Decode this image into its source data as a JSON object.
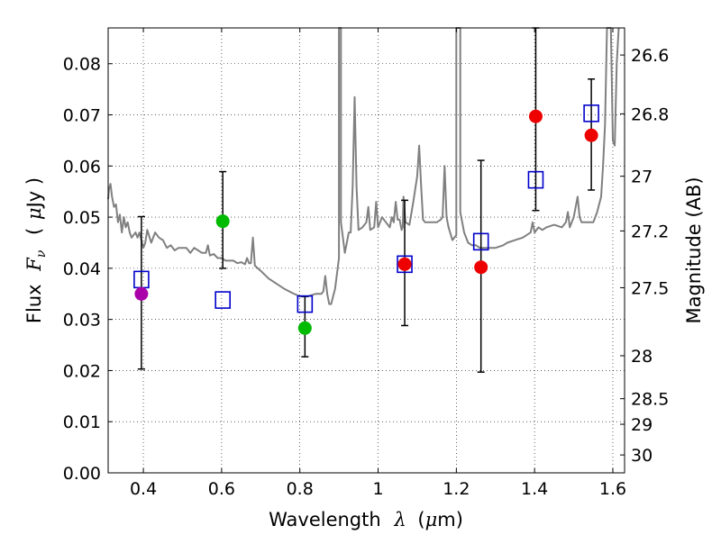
{
  "chart_data": {
    "type": "scatter",
    "title": "",
    "xlabel_prefix": "Wavelength",
    "xlabel_symbol": "λ",
    "xlabel_unit_open": "(",
    "xlabel_unit_mu": "μ",
    "xlabel_unit_rest": "m)",
    "ylabel_prefix": "Flux",
    "ylabel_symbol": "F",
    "ylabel_sub": "ν",
    "ylabel_unit_open": "(",
    "ylabel_unit_mu": "μ",
    "ylabel_unit_rest": "Jy )",
    "y2label": "Magnitude (AB)",
    "xlim": [
      0.31,
      1.63
    ],
    "ylim": [
      0.0,
      0.087
    ],
    "grid": true,
    "x_ticks": [
      0.4,
      0.6,
      0.8,
      1.0,
      1.2,
      1.4,
      1.6
    ],
    "x_tick_labels": [
      "0.4",
      "0.6",
      "0.8",
      "1",
      "1.2",
      "1.4",
      "1.6"
    ],
    "y_ticks": [
      0.0,
      0.01,
      0.02,
      0.03,
      0.04,
      0.05,
      0.06,
      0.07,
      0.08
    ],
    "y_tick_labels": [
      "0.00",
      "0.01",
      "0.02",
      "0.03",
      "0.04",
      "0.05",
      "0.06",
      "0.07",
      "0.08"
    ],
    "magnitude_ticks": [
      {
        "label": "26.6",
        "flux": 0.0817
      },
      {
        "label": "26.8",
        "flux": 0.0702
      },
      {
        "label": "27",
        "flux": 0.058
      },
      {
        "label": "27.2",
        "flux": 0.0473
      },
      {
        "label": "27.5",
        "flux": 0.0362
      },
      {
        "label": "28",
        "flux": 0.0229
      },
      {
        "label": "28.5",
        "flux": 0.0145
      },
      {
        "label": "29",
        "flux": 0.0095
      },
      {
        "label": "30",
        "flux": 0.0035
      }
    ],
    "series": [
      {
        "name": "model spectrum",
        "kind": "line",
        "color": "#808080",
        "points": [
          [
            0.31,
            0.0535
          ],
          [
            0.312,
            0.0555
          ],
          [
            0.316,
            0.0565
          ],
          [
            0.32,
            0.054
          ],
          [
            0.325,
            0.052
          ],
          [
            0.33,
            0.0525
          ],
          [
            0.335,
            0.049
          ],
          [
            0.34,
            0.0505
          ],
          [
            0.345,
            0.047
          ],
          [
            0.35,
            0.05
          ],
          [
            0.355,
            0.048
          ],
          [
            0.36,
            0.049
          ],
          [
            0.365,
            0.047
          ],
          [
            0.37,
            0.046
          ],
          [
            0.38,
            0.047
          ],
          [
            0.385,
            0.046
          ],
          [
            0.39,
            0.047
          ],
          [
            0.4,
            0.044
          ],
          [
            0.405,
            0.045
          ],
          [
            0.41,
            0.0475
          ],
          [
            0.42,
            0.045
          ],
          [
            0.43,
            0.047
          ],
          [
            0.44,
            0.046
          ],
          [
            0.45,
            0.0455
          ],
          [
            0.46,
            0.044
          ],
          [
            0.47,
            0.0445
          ],
          [
            0.48,
            0.0435
          ],
          [
            0.49,
            0.044
          ],
          [
            0.5,
            0.044
          ],
          [
            0.51,
            0.044
          ],
          [
            0.52,
            0.043
          ],
          [
            0.53,
            0.044
          ],
          [
            0.54,
            0.0435
          ],
          [
            0.55,
            0.043
          ],
          [
            0.56,
            0.043
          ],
          [
            0.565,
            0.0445
          ],
          [
            0.57,
            0.0425
          ],
          [
            0.58,
            0.0428
          ],
          [
            0.59,
            0.042
          ],
          [
            0.6,
            0.042
          ],
          [
            0.61,
            0.0415
          ],
          [
            0.62,
            0.0415
          ],
          [
            0.63,
            0.0415
          ],
          [
            0.64,
            0.041
          ],
          [
            0.65,
            0.0412
          ],
          [
            0.66,
            0.0408
          ],
          [
            0.665,
            0.042
          ],
          [
            0.67,
            0.041
          ],
          [
            0.675,
            0.041
          ],
          [
            0.68,
            0.046
          ],
          [
            0.685,
            0.0405
          ],
          [
            0.7,
            0.0395
          ],
          [
            0.72,
            0.038
          ],
          [
            0.74,
            0.037
          ],
          [
            0.76,
            0.036
          ],
          [
            0.78,
            0.0352
          ],
          [
            0.8,
            0.0345
          ],
          [
            0.82,
            0.0345
          ],
          [
            0.84,
            0.035
          ],
          [
            0.855,
            0.035
          ],
          [
            0.86,
            0.0355
          ],
          [
            0.865,
            0.0385
          ],
          [
            0.87,
            0.035
          ],
          [
            0.875,
            0.033
          ],
          [
            0.88,
            0.033
          ],
          [
            0.885,
            0.0345
          ],
          [
            0.89,
            0.036
          ],
          [
            0.9,
            0.042
          ],
          [
            0.9,
            0.087
          ],
          [
            0.905,
            0.087
          ],
          [
            0.905,
            0.049
          ],
          [
            0.91,
            0.046
          ],
          [
            0.915,
            0.043
          ],
          [
            0.92,
            0.045
          ],
          [
            0.925,
            0.047
          ],
          [
            0.93,
            0.047
          ],
          [
            0.935,
            0.056
          ],
          [
            0.94,
            0.0735
          ],
          [
            0.945,
            0.056
          ],
          [
            0.95,
            0.0475
          ],
          [
            0.96,
            0.048
          ],
          [
            0.97,
            0.049
          ],
          [
            0.975,
            0.052
          ],
          [
            0.98,
            0.0475
          ],
          [
            0.99,
            0.048
          ],
          [
            0.995,
            0.053
          ],
          [
            1.0,
            0.048
          ],
          [
            1.01,
            0.05
          ],
          [
            1.02,
            0.049
          ],
          [
            1.03,
            0.048
          ],
          [
            1.035,
            0.05
          ],
          [
            1.04,
            0.049
          ],
          [
            1.045,
            0.053
          ],
          [
            1.05,
            0.0495
          ],
          [
            1.055,
            0.0495
          ],
          [
            1.06,
            0.0475
          ],
          [
            1.063,
            0.048
          ],
          [
            1.065,
            0.054
          ],
          [
            1.07,
            0.049
          ],
          [
            1.08,
            0.0485
          ],
          [
            1.09,
            0.053
          ],
          [
            1.1,
            0.058
          ],
          [
            1.105,
            0.064
          ],
          [
            1.11,
            0.056
          ],
          [
            1.115,
            0.0495
          ],
          [
            1.12,
            0.049
          ],
          [
            1.13,
            0.049
          ],
          [
            1.14,
            0.049
          ],
          [
            1.15,
            0.049
          ],
          [
            1.16,
            0.0495
          ],
          [
            1.165,
            0.05
          ],
          [
            1.17,
            0.06
          ],
          [
            1.175,
            0.05
          ],
          [
            1.18,
            0.048
          ],
          [
            1.19,
            0.0455
          ],
          [
            1.2,
            0.0465
          ],
          [
            1.2,
            0.087
          ],
          [
            1.21,
            0.087
          ],
          [
            1.21,
            0.051
          ],
          [
            1.22,
            0.047
          ],
          [
            1.23,
            0.045
          ],
          [
            1.24,
            0.0445
          ],
          [
            1.25,
            0.0445
          ],
          [
            1.26,
            0.044
          ],
          [
            1.27,
            0.044
          ],
          [
            1.28,
            0.044
          ],
          [
            1.3,
            0.044
          ],
          [
            1.32,
            0.0445
          ],
          [
            1.33,
            0.045
          ],
          [
            1.35,
            0.0455
          ],
          [
            1.37,
            0.046
          ],
          [
            1.39,
            0.047
          ],
          [
            1.395,
            0.049
          ],
          [
            1.4,
            0.047
          ],
          [
            1.41,
            0.048
          ],
          [
            1.42,
            0.0475
          ],
          [
            1.43,
            0.048
          ],
          [
            1.45,
            0.0485
          ],
          [
            1.47,
            0.048
          ],
          [
            1.48,
            0.049
          ],
          [
            1.485,
            0.051
          ],
          [
            1.49,
            0.048
          ],
          [
            1.5,
            0.05
          ],
          [
            1.51,
            0.054
          ],
          [
            1.515,
            0.05
          ],
          [
            1.52,
            0.049
          ],
          [
            1.53,
            0.049
          ],
          [
            1.54,
            0.049
          ],
          [
            1.55,
            0.049
          ],
          [
            1.56,
            0.051
          ],
          [
            1.57,
            0.054
          ],
          [
            1.575,
            0.06
          ],
          [
            1.58,
            0.068
          ],
          [
            1.585,
            0.087
          ],
          [
            1.595,
            0.087
          ],
          [
            1.6,
            0.065
          ],
          [
            1.605,
            0.064
          ],
          [
            1.61,
            0.08
          ],
          [
            1.615,
            0.087
          ]
        ]
      },
      {
        "name": "model photometry",
        "kind": "open-square",
        "color": "#0000cc",
        "points": [
          [
            0.395,
            0.0378
          ],
          [
            0.603,
            0.0338
          ],
          [
            0.813,
            0.033
          ],
          [
            1.068,
            0.0408
          ],
          [
            1.263,
            0.0452
          ],
          [
            1.403,
            0.0573
          ],
          [
            1.545,
            0.0703
          ]
        ]
      },
      {
        "name": "observed",
        "kind": "filled-circle",
        "points": [
          {
            "x": 0.395,
            "y": 0.035,
            "color": "#aa00aa",
            "err": [
              0.0203,
              0.0501
            ]
          },
          {
            "x": 0.603,
            "y": 0.0492,
            "color": "#00bb00",
            "err": [
              0.04,
              0.0589
            ]
          },
          {
            "x": 0.813,
            "y": 0.0283,
            "color": "#00bb00",
            "err": [
              0.0227,
              0.0345
            ]
          },
          {
            "x": 1.068,
            "y": 0.0408,
            "color": "#ee0000",
            "err": [
              0.0288,
              0.0533
            ]
          },
          {
            "x": 1.263,
            "y": 0.0402,
            "color": "#ee0000",
            "err": [
              0.0197,
              0.0611
            ]
          },
          {
            "x": 1.403,
            "y": 0.0697,
            "color": "#ee0000",
            "err": [
              0.0513,
              0.087
            ]
          },
          {
            "x": 1.545,
            "y": 0.066,
            "color": "#ee0000",
            "err": [
              0.0553,
              0.077
            ]
          }
        ]
      }
    ]
  }
}
